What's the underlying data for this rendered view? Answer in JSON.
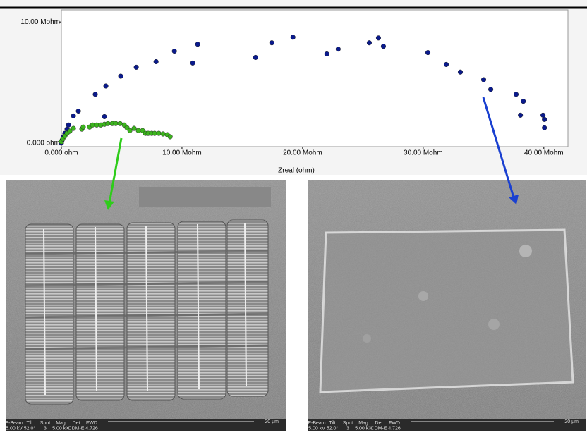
{
  "chart_data": {
    "type": "scatter",
    "xlabel": "Zreal (ohm)",
    "xlim": [
      0,
      42
    ],
    "ylim": [
      -0.3,
      11
    ],
    "xticks": [
      {
        "value": 0,
        "label": "0.000 ohm"
      },
      {
        "value": 10,
        "label": "10.00 Mohm"
      },
      {
        "value": 20,
        "label": "20.00 Mohm"
      },
      {
        "value": 30,
        "label": "30.00 Mohm"
      },
      {
        "value": 40,
        "label": "40.00 Mohm"
      }
    ],
    "yticks": [
      {
        "value": 0,
        "label": "0.000 ohm"
      },
      {
        "value": 10,
        "label": "10.00 Mohm"
      }
    ],
    "series": [
      {
        "color": "#0a1a8c",
        "x": [
          0,
          0.06,
          0.18,
          0.29,
          0.47,
          0.59,
          1.0,
          1.41,
          2.81,
          3.69,
          3.57,
          4.92,
          6.21,
          7.85,
          9.37,
          10.89,
          11.3,
          16.1,
          17.45,
          19.2,
          22.01,
          22.95,
          25.53,
          26.29,
          26.7,
          30.39,
          31.91,
          33.08,
          35.01,
          35.6,
          37.7,
          38.3,
          38.06,
          39.93,
          40.05,
          40.05
        ],
        "values": [
          0,
          0.23,
          0.52,
          0.8,
          1.15,
          1.49,
          2.24,
          2.64,
          4.02,
          4.71,
          2.18,
          5.52,
          6.26,
          6.72,
          7.59,
          6.61,
          8.16,
          7.07,
          8.28,
          8.74,
          7.36,
          7.76,
          8.28,
          8.68,
          7.99,
          7.47,
          6.49,
          5.86,
          5.23,
          4.43,
          4.02,
          3.45,
          2.3,
          2.3,
          1.95,
          1.26
        ]
      },
      {
        "color": "#3cb41e",
        "x": [
          0,
          0.12,
          0.29,
          0.47,
          0.7,
          1.0,
          1.7,
          1.81,
          2.34,
          2.58,
          2.93,
          3.28,
          3.57,
          3.86,
          4.22,
          4.51,
          4.86,
          5.21,
          5.44,
          5.68,
          6.03,
          6.38,
          6.73,
          6.97,
          7.2,
          7.49,
          7.73,
          8.08,
          8.43,
          8.78,
          9.02
        ],
        "values": [
          0.11,
          0.34,
          0.57,
          0.8,
          0.98,
          1.21,
          1.15,
          1.32,
          1.32,
          1.49,
          1.49,
          1.49,
          1.55,
          1.61,
          1.61,
          1.61,
          1.61,
          1.49,
          1.26,
          1.03,
          1.21,
          1.03,
          1.03,
          0.8,
          0.8,
          0.8,
          0.8,
          0.8,
          0.75,
          0.69,
          0.52
        ]
      }
    ]
  },
  "sem_images": [
    {
      "headers": [
        "E-Beam",
        "Tilt",
        "Spot",
        "Mag",
        "Det",
        "FWD"
      ],
      "values": [
        "5.00 kV",
        "52.0°",
        "3",
        "5.00 kX",
        "CDM-E",
        "4.726"
      ],
      "scale": "20 µm"
    },
    {
      "headers": [
        "E-Beam",
        "Tilt",
        "Spot",
        "Mag",
        "Det",
        "FWD"
      ],
      "values": [
        "5.00 kV",
        "52.0°",
        "3",
        "5.00 kX",
        "CDM-E",
        "4.726"
      ],
      "scale": "20 µm"
    }
  ]
}
